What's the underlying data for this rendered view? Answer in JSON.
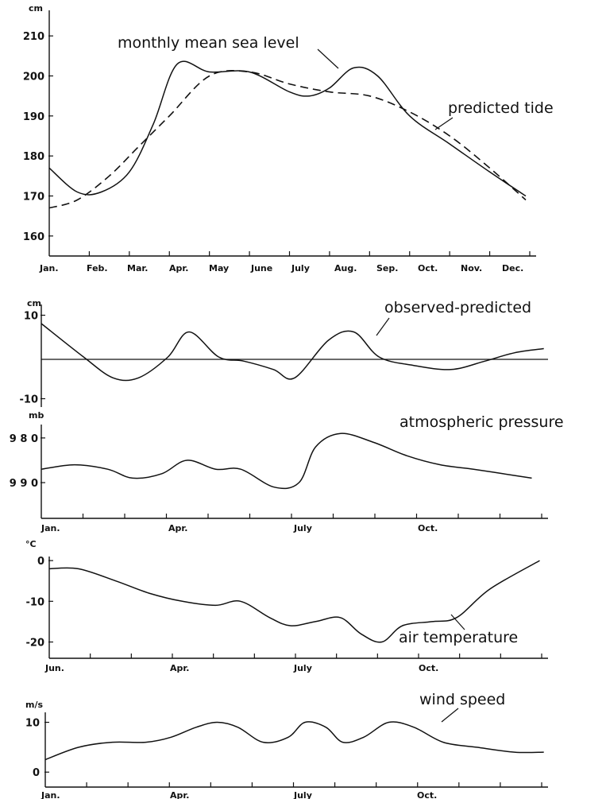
{
  "chart_data": [
    {
      "id": "sea_level",
      "type": "line",
      "ylabel": "cm",
      "ylim": [
        155,
        215
      ],
      "yticks": [
        160,
        170,
        180,
        190,
        200,
        210
      ],
      "x_tick_labels": [
        "Jan.",
        "Feb.",
        "Mar.",
        "Apr.",
        "May",
        "June",
        "July",
        "Aug.",
        "Sep.",
        "Oct.",
        "Nov.",
        "Dec."
      ],
      "series": [
        {
          "name": "monthly mean sea level",
          "style": "solid",
          "x": [
            0,
            0.7,
            1.3,
            2.0,
            2.6,
            3.2,
            4.0,
            5.0,
            6.0,
            6.5,
            7.0,
            7.6,
            8.2,
            9.0,
            10.0,
            11.0,
            11.9
          ],
          "y": [
            177,
            171,
            171,
            176,
            188,
            203,
            201,
            201,
            196,
            195,
            197,
            202,
            200,
            190,
            183,
            176,
            170
          ]
        },
        {
          "name": "predicted tide",
          "style": "dashed",
          "x": [
            0,
            0.7,
            1.5,
            2.2,
            3.0,
            4.0,
            5.0,
            6.0,
            7.0,
            8.0,
            9.0,
            10.0,
            11.0,
            11.9
          ],
          "y": [
            167,
            169,
            175,
            182,
            190,
            200,
            201,
            198,
            196,
            195,
            191,
            185,
            177,
            169
          ]
        }
      ]
    },
    {
      "id": "observed_minus_predicted",
      "type": "line",
      "ylabel": "cm",
      "ylim": [
        -12,
        12
      ],
      "yticks": [
        10,
        -10
      ],
      "series": [
        {
          "name": "observed-predicted",
          "style": "solid",
          "x": [
            0,
            1.0,
            1.7,
            2.3,
            3.0,
            3.5,
            4.2,
            4.8,
            5.5,
            6.0,
            6.8,
            7.4,
            8.0,
            8.8,
            9.7,
            10.5,
            11.2,
            11.9
          ],
          "y": [
            8,
            0,
            -5,
            -5,
            0,
            6,
            0,
            -1,
            -3,
            -5,
            4,
            6,
            0,
            -2,
            -3,
            -1,
            1,
            2
          ]
        }
      ]
    },
    {
      "id": "atmospheric_pressure",
      "type": "line",
      "ylabel": "mb",
      "ylim": [
        998,
        977
      ],
      "yticks": [
        980,
        990
      ],
      "x_tick_labels": [
        "Jan.",
        "Apr.",
        "July",
        "Oct."
      ],
      "series": [
        {
          "name": "atmospheric pressure",
          "style": "solid",
          "x": [
            0,
            0.8,
            1.6,
            2.2,
            2.9,
            3.5,
            4.2,
            4.8,
            5.6,
            6.2,
            6.6,
            7.2,
            8.0,
            8.8,
            9.6,
            10.4,
            11.1,
            11.8
          ],
          "y": [
            987,
            986,
            987,
            989,
            988,
            985,
            987,
            987,
            991,
            990,
            982,
            979,
            981,
            984,
            986,
            987,
            988,
            989
          ]
        }
      ]
    },
    {
      "id": "air_temperature",
      "type": "line",
      "ylabel": "°C",
      "ylim": [
        -24,
        1
      ],
      "yticks": [
        0,
        -10,
        -20
      ],
      "x_tick_labels": [
        "Jun.",
        "Apr.",
        "July",
        "Oct."
      ],
      "series": [
        {
          "name": "air temperature",
          "style": "solid",
          "x": [
            0,
            0.7,
            1.6,
            2.4,
            3.2,
            4.0,
            4.6,
            5.3,
            5.8,
            6.4,
            7.0,
            7.5,
            8.0,
            8.5,
            9.2,
            9.8,
            10.6,
            11.8
          ],
          "y": [
            -2,
            -2,
            -5,
            -8,
            -10,
            -11,
            -10,
            -14,
            -16,
            -15,
            -14,
            -18,
            -20,
            -16,
            -15,
            -14,
            -7,
            0
          ]
        }
      ]
    },
    {
      "id": "wind_speed",
      "type": "line",
      "ylabel": "m/s",
      "ylim": [
        -3,
        12
      ],
      "yticks": [
        10,
        0
      ],
      "x_tick_labels": [
        "Jan.",
        "Apr.",
        "July",
        "Oct."
      ],
      "series": [
        {
          "name": "wind speed",
          "style": "solid",
          "x": [
            0,
            0.8,
            1.6,
            2.4,
            3.0,
            3.6,
            4.1,
            4.6,
            5.2,
            5.8,
            6.2,
            6.7,
            7.1,
            7.6,
            8.2,
            8.8,
            9.5,
            10.3,
            11.2,
            11.9
          ],
          "y": [
            2.5,
            5,
            6,
            6,
            7,
            9,
            10,
            9,
            6,
            7,
            10,
            9,
            6,
            7,
            10,
            9,
            6,
            5,
            4,
            4
          ]
        }
      ]
    }
  ]
}
